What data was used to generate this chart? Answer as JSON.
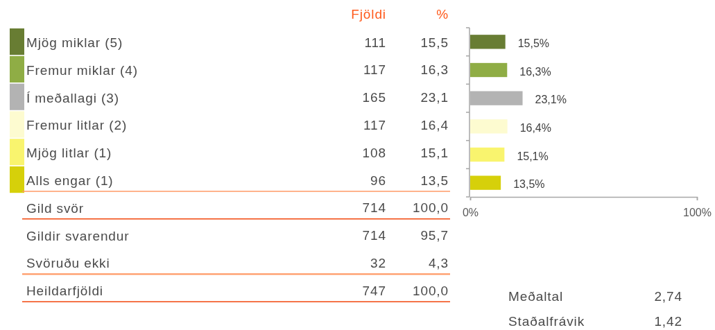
{
  "chart_data": [
    {
      "type": "other",
      "categories": [
        "Mjög miklar (5)",
        "Fremur miklar (4)",
        "Í meðallagi (3)",
        "Fremur litlar (2)",
        "Mjög litlar (1)",
        "Alls engar (1)",
        "Gild svör",
        "Gildir svarendur",
        "Svöruðu ekki",
        "Heildarfjöldi"
      ],
      "data_labels": true,
      "series": [
        {
          "name": "Fjöldi",
          "values": [
            111,
            117,
            165,
            117,
            108,
            96,
            714,
            714,
            32,
            747
          ]
        },
        {
          "name": "%",
          "values": [
            15.5,
            16.3,
            23.1,
            16.4,
            15.1,
            13.5,
            100.0,
            95.7,
            4.3,
            100.0
          ],
          "value_labels": [
            "15,5",
            "16,3",
            "23,1",
            "16,4",
            "15,1",
            "13,5",
            "100,0",
            "95,7",
            "4,3",
            "100,0"
          ]
        }
      ]
    },
    {
      "type": "bar",
      "orientation": "horizontal",
      "categories": [
        null,
        null,
        null,
        null,
        null,
        null
      ],
      "values": [
        15.5,
        16.3,
        23.1,
        16.4,
        15.1,
        13.5
      ],
      "colors": [
        "#687d33",
        "#8fad45",
        "#b3b3b3",
        "#fdfbd0",
        "#f9f46e",
        "#d6d00a"
      ],
      "value_labels": [
        "15,5%",
        "16,3%",
        "23,1%",
        "16,4%",
        "15,1%",
        "13,5%"
      ],
      "xlim": [
        0,
        100
      ],
      "xticks": [
        {
          "value": 0,
          "label": "0%"
        },
        {
          "value": 100,
          "label": "100%"
        }
      ]
    },
    {
      "type": "other",
      "categories": [
        "Meðaltal",
        "Staðalfrávik"
      ],
      "values": [
        2.74,
        1.42
      ],
      "value_labels": [
        "2,74",
        "1,42"
      ]
    }
  ]
}
